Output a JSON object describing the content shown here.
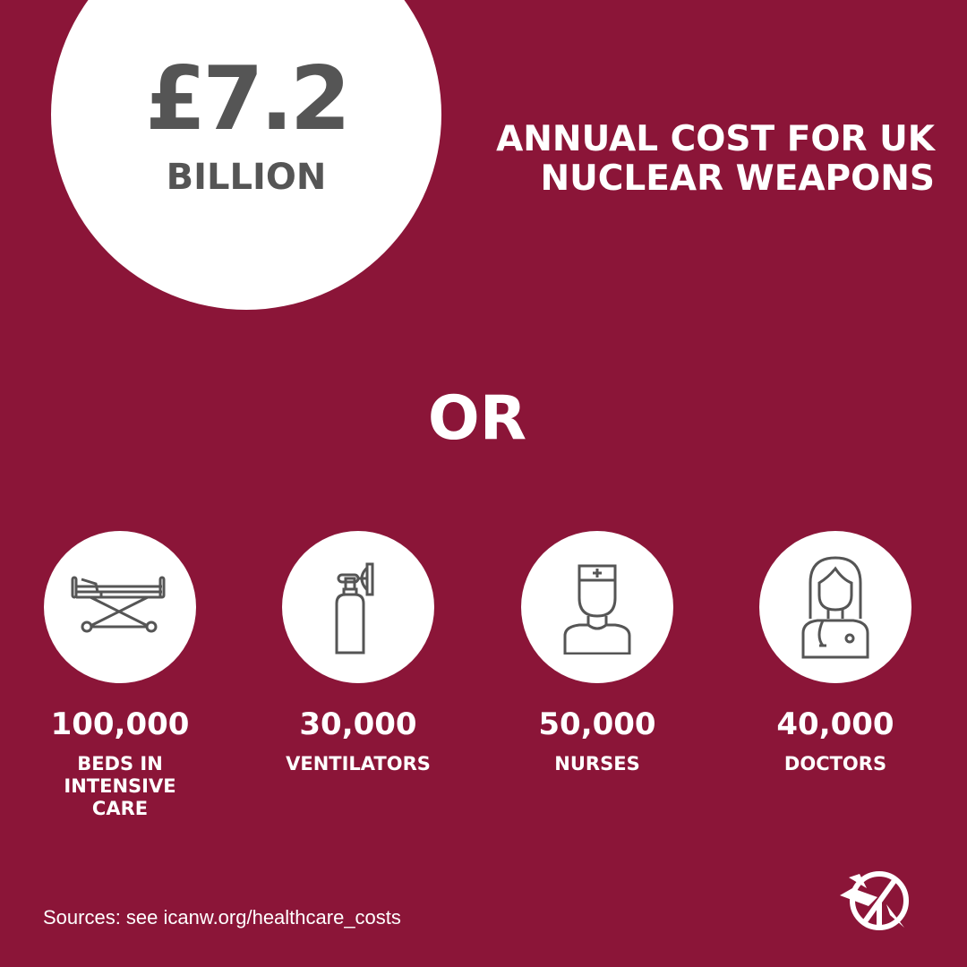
{
  "hero": {
    "amount": "£7.2",
    "unit": "BILLION"
  },
  "headline": {
    "line1": "ANNUAL COST FOR UK",
    "line2": "NUCLEAR WEAPONS"
  },
  "separator": "OR",
  "items": [
    {
      "value": "100,000",
      "label": "BEDS IN INTENSIVE CARE",
      "icon": "hospital-bed-icon"
    },
    {
      "value": "30,000",
      "label": "VENTILATORS",
      "icon": "ventilator-icon"
    },
    {
      "value": "50,000",
      "label": "NURSES",
      "icon": "nurse-icon"
    },
    {
      "value": "40,000",
      "label": "DOCTORS",
      "icon": "doctor-icon"
    }
  ],
  "sources": {
    "prefix": "Sources: see",
    "link": "icanw.org/healthcare_costs"
  },
  "colors": {
    "background": "#8b1538",
    "icon": "#555555"
  }
}
